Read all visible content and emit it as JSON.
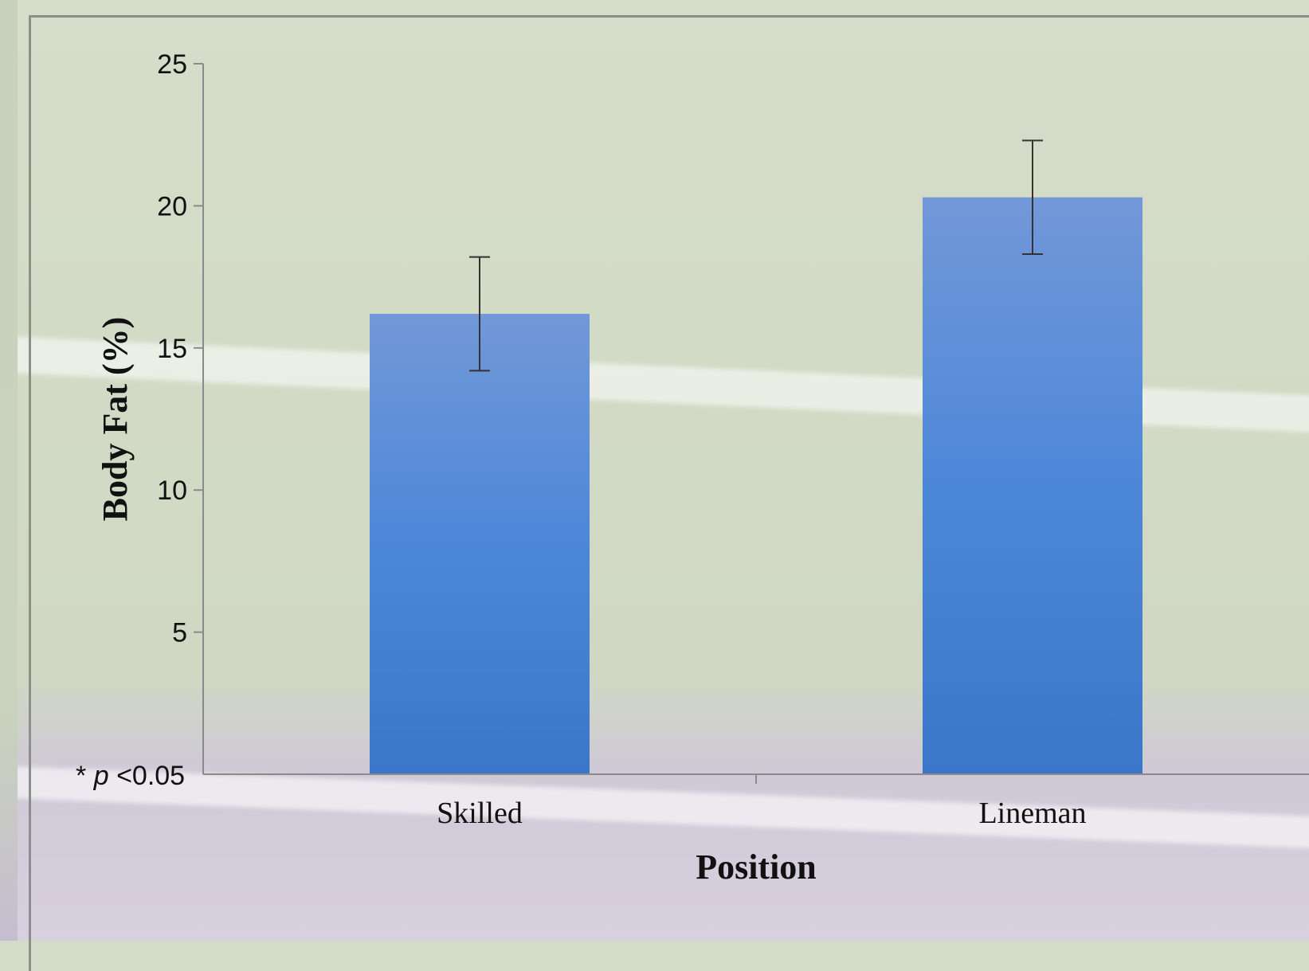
{
  "chart_data": {
    "type": "bar",
    "title": "",
    "xlabel": "Position",
    "ylabel": "Body Fat (%)",
    "categories": [
      "Skilled",
      "Lineman"
    ],
    "values": [
      16.2,
      20.3
    ],
    "error": [
      2.0,
      2.0
    ],
    "ylim": [
      0,
      25
    ],
    "yticks": [
      {
        "v": 5,
        "label": "5"
      },
      {
        "v": 10,
        "label": "10"
      },
      {
        "v": 15,
        "label": "15"
      },
      {
        "v": 20,
        "label": "20"
      },
      {
        "v": 25,
        "label": "25"
      }
    ],
    "grid": false,
    "bar_color_top": "#7298d8",
    "bar_color_bottom": "#3b76c9"
  },
  "note": {
    "asterisk": "*",
    "p": "p",
    "rest": "<0.05"
  }
}
